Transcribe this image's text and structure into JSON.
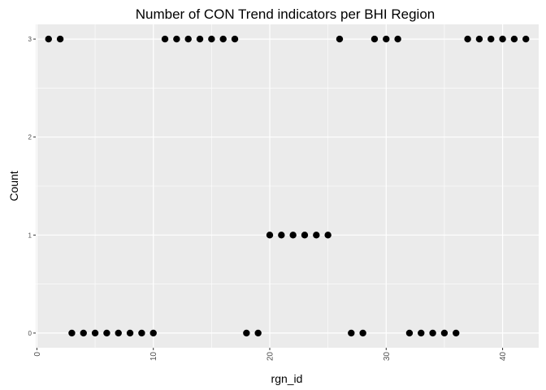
{
  "chart_data": {
    "type": "scatter",
    "title": "Number of CON Trend indicators per BHI Region",
    "xlabel": "rgn_id",
    "ylabel": "Count",
    "xlim": [
      -0.1,
      43.1
    ],
    "ylim": [
      -0.15,
      3.15
    ],
    "x_ticks": [
      0,
      10,
      20,
      30,
      40
    ],
    "y_ticks": [
      0,
      1,
      2,
      3
    ],
    "x_minor_ticks": [
      5,
      15,
      25,
      35
    ],
    "y_minor_ticks": [
      0.5,
      1.5,
      2.5
    ],
    "grid": true,
    "legend": "none",
    "colors": {
      "panel": "#ebebeb",
      "grid": "#ffffff",
      "point": "#000000",
      "tick": "#333333"
    },
    "points": [
      {
        "x": 1,
        "y": 3
      },
      {
        "x": 2,
        "y": 3
      },
      {
        "x": 3,
        "y": 0
      },
      {
        "x": 4,
        "y": 0
      },
      {
        "x": 5,
        "y": 0
      },
      {
        "x": 6,
        "y": 0
      },
      {
        "x": 7,
        "y": 0
      },
      {
        "x": 8,
        "y": 0
      },
      {
        "x": 9,
        "y": 0
      },
      {
        "x": 10,
        "y": 0
      },
      {
        "x": 11,
        "y": 3
      },
      {
        "x": 12,
        "y": 3
      },
      {
        "x": 13,
        "y": 3
      },
      {
        "x": 14,
        "y": 3
      },
      {
        "x": 15,
        "y": 3
      },
      {
        "x": 16,
        "y": 3
      },
      {
        "x": 17,
        "y": 3
      },
      {
        "x": 18,
        "y": 0
      },
      {
        "x": 19,
        "y": 0
      },
      {
        "x": 20,
        "y": 1
      },
      {
        "x": 21,
        "y": 1
      },
      {
        "x": 22,
        "y": 1
      },
      {
        "x": 23,
        "y": 1
      },
      {
        "x": 24,
        "y": 1
      },
      {
        "x": 25,
        "y": 1
      },
      {
        "x": 26,
        "y": 3
      },
      {
        "x": 27,
        "y": 0
      },
      {
        "x": 28,
        "y": 0
      },
      {
        "x": 29,
        "y": 3
      },
      {
        "x": 30,
        "y": 3
      },
      {
        "x": 31,
        "y": 3
      },
      {
        "x": 32,
        "y": 0
      },
      {
        "x": 33,
        "y": 0
      },
      {
        "x": 34,
        "y": 0
      },
      {
        "x": 35,
        "y": 0
      },
      {
        "x": 36,
        "y": 0
      },
      {
        "x": 37,
        "y": 3
      },
      {
        "x": 38,
        "y": 3
      },
      {
        "x": 39,
        "y": 3
      },
      {
        "x": 40,
        "y": 3
      },
      {
        "x": 41,
        "y": 3
      },
      {
        "x": 42,
        "y": 3
      }
    ]
  }
}
